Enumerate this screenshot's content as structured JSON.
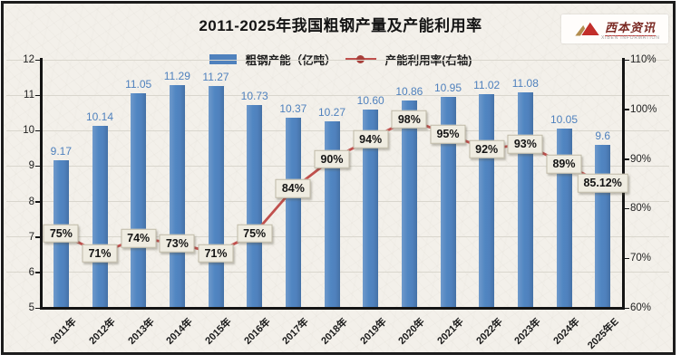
{
  "header": {
    "title": "2011-2025年我国粗钢产量及产能利用率"
  },
  "logo": {
    "brand": "西本资讯",
    "caption": "XIBEN INFORMATION",
    "icon": "mountain-logo-icon"
  },
  "colors": {
    "bar": "#4f81bd",
    "line": "#c0504d",
    "marker": "#a83f3a",
    "value_label": "#4f81bd",
    "label_box_bg": "#efece1",
    "grid": "#d9d6cd",
    "axis": "#141414",
    "frame_background": "#f3f0ea"
  },
  "chart_data": {
    "type": "bar",
    "subtype": "combo-bar-line",
    "title": "2011-2025年我国粗钢产量及产能利用率",
    "categories": [
      "2011年",
      "2012年",
      "2013年",
      "2014年",
      "2015年",
      "2016年",
      "2017年",
      "2018年",
      "2019年",
      "2020年",
      "2021年",
      "2022年",
      "2023年",
      "2024年",
      "2025年E"
    ],
    "series": [
      {
        "name": "粗钢产能（亿吨）",
        "type": "bar",
        "axis": "left",
        "color": "#4f81bd",
        "values": [
          9.17,
          10.14,
          11.05,
          11.29,
          11.27,
          10.73,
          10.37,
          10.27,
          10.6,
          10.86,
          10.95,
          11.02,
          11.08,
          10.05,
          9.6
        ],
        "labels": [
          "9.17",
          "10.14",
          "11.05",
          "11.29",
          "11.27",
          "10.73",
          "10.37",
          "10.27",
          "10.60",
          "10.86",
          "10.95",
          "11.02",
          "11.08",
          "10.05",
          "9.6"
        ]
      },
      {
        "name": "产能利用率(右轴)",
        "type": "line",
        "axis": "right",
        "color": "#c0504d",
        "values": [
          75,
          71,
          74,
          73,
          71,
          75,
          84,
          90,
          94,
          98,
          95,
          92,
          93,
          89,
          85.12
        ],
        "labels": [
          "75%",
          "71%",
          "74%",
          "73%",
          "71%",
          "75%",
          "84%",
          "90%",
          "94%",
          "98%",
          "95%",
          "92%",
          "93%",
          "89%",
          "85.12%"
        ]
      }
    ],
    "left_axis": {
      "min": 5,
      "max": 12,
      "ticks": [
        12,
        11,
        10,
        9,
        8,
        7,
        6,
        5
      ],
      "tick_labels": [
        "12",
        "11",
        "10",
        "9",
        "8",
        "7",
        "6",
        "5"
      ]
    },
    "right_axis": {
      "min": 60,
      "max": 110,
      "ticks": [
        110,
        100,
        90,
        80,
        70,
        60
      ],
      "tick_labels": [
        "110%",
        "100%",
        "90%",
        "80%",
        "70%",
        "60%"
      ]
    },
    "grid": true,
    "legend_position": "top"
  }
}
